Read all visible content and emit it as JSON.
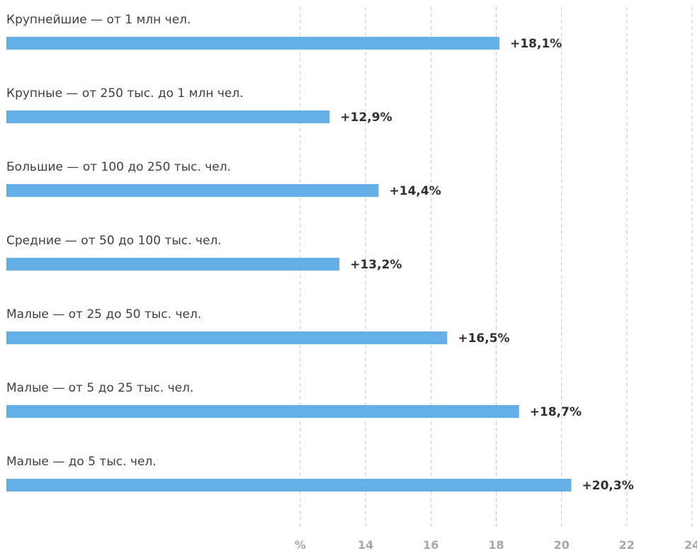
{
  "chart_data": {
    "type": "bar",
    "orientation": "horizontal",
    "categories": [
      "Крупнейшие — от 1 млн чел.",
      "Крупные — от 250 тыс. до 1 млн чел.",
      "Большие — от 100 до 250 тыс. чел.",
      "Средние — от 50 до 100 тыс. чел.",
      "Малые — от 25 до 50 тыс. чел.",
      "Малые — от 5 до 25 тыс. чел.",
      "Малые — до 5 тыс. чел."
    ],
    "values": [
      18.1,
      12.9,
      14.4,
      13.2,
      16.5,
      18.7,
      20.3
    ],
    "value_labels": [
      "+18,1%",
      "+12,9%",
      "+14,4%",
      "+13,2%",
      "+16,5%",
      "+18,7%",
      "+20,3%"
    ],
    "x_ticks": [
      {
        "value": 12,
        "label": "%"
      },
      {
        "value": 14,
        "label": "14"
      },
      {
        "value": 16,
        "label": "16"
      },
      {
        "value": 18,
        "label": "18"
      },
      {
        "value": 20,
        "label": "20"
      },
      {
        "value": 22,
        "label": "22"
      },
      {
        "value": 24,
        "label": "24"
      }
    ],
    "xlim": [
      3,
      24
    ],
    "grid": true,
    "title": "",
    "xlabel": "",
    "ylabel": ""
  },
  "colors": {
    "bar": "#63b0e8",
    "grid": "#c4c6cb",
    "category_text": "#3d3f45",
    "value_text": "#2e3035",
    "tick_text": "#a3a7ae"
  }
}
